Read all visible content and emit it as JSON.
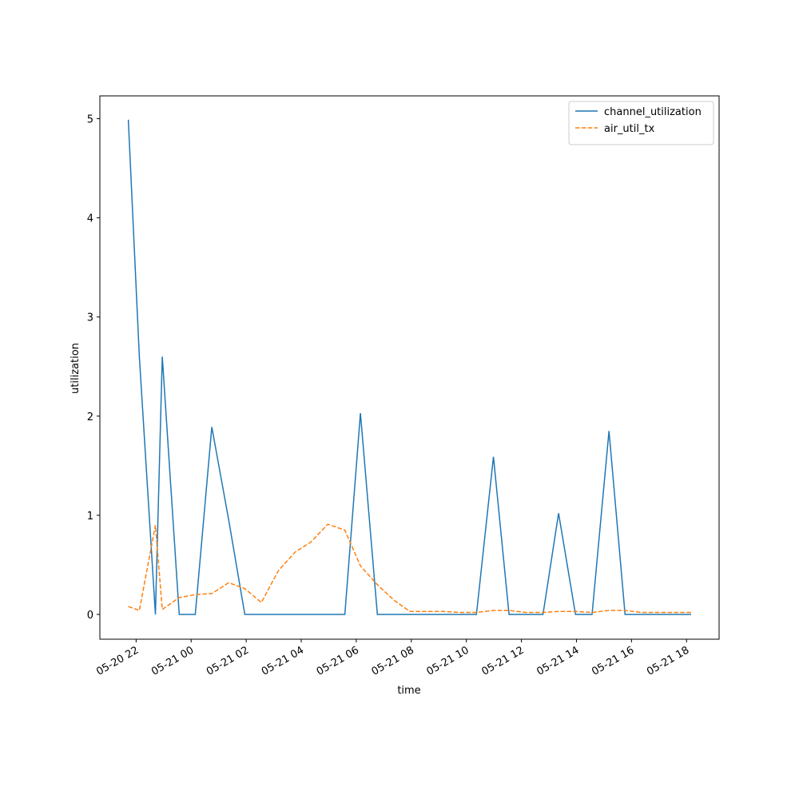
{
  "chart_data": {
    "type": "line",
    "xlabel": "time",
    "ylabel": "utilization",
    "x": [
      "05-20 21:43",
      "05-20 22:07",
      "05-20 22:42",
      "05-20 22:57",
      "05-20 23:34",
      "05-21 00:09",
      "05-21 00:45",
      "05-21 01:22",
      "05-21 01:57",
      "05-21 02:33",
      "05-21 03:10",
      "05-21 03:47",
      "05-21 04:21",
      "05-21 04:58",
      "05-21 05:35",
      "05-21 06:09",
      "05-21 06:46",
      "05-21 07:23",
      "05-21 07:57",
      "05-21 08:34",
      "05-21 09:10",
      "05-21 09:45",
      "05-21 10:22",
      "05-21 10:59",
      "05-21 11:33",
      "05-21 12:10",
      "05-21 12:47",
      "05-21 13:21",
      "05-21 13:58",
      "05-21 14:34",
      "05-21 15:11",
      "05-21 15:46",
      "05-21 16:22",
      "05-21 16:59",
      "05-21 17:33",
      "05-21 18:10"
    ],
    "series": [
      {
        "name": "channel_utilization",
        "color": "#1f77b4",
        "dashed": false,
        "values": [
          4.99,
          2.6,
          0,
          2.6,
          0,
          0,
          1.89,
          0.95,
          0,
          0,
          0,
          0,
          0,
          0,
          0,
          2.03,
          0,
          0,
          0,
          0,
          0,
          0,
          0,
          1.59,
          0,
          0,
          0,
          1.02,
          0,
          0,
          1.85,
          0,
          0,
          0,
          0,
          0
        ]
      },
      {
        "name": "air_util_tx",
        "color": "#ff7f0e",
        "dashed": true,
        "values": [
          0.08,
          0.04,
          0.9,
          0.05,
          0.17,
          0.2,
          0.21,
          0.32,
          0.26,
          0.12,
          0.44,
          0.63,
          0.73,
          0.91,
          0.85,
          0.49,
          0.3,
          0.14,
          0.03,
          0.03,
          0.03,
          0.02,
          0.02,
          0.04,
          0.04,
          0.02,
          0.02,
          0.03,
          0.03,
          0.02,
          0.04,
          0.04,
          0.02,
          0.02,
          0.02,
          0.02
        ]
      }
    ],
    "xlim": [
      "05-20 20:41",
      "05-21 19:11"
    ],
    "xticks": [
      "05-20 22",
      "05-21 00",
      "05-21 02",
      "05-21 04",
      "05-21 06",
      "05-21 08",
      "05-21 10",
      "05-21 12",
      "05-21 14",
      "05-21 16",
      "05-21 18"
    ],
    "ylim": [
      -0.25,
      5.23
    ],
    "yticks": [
      0,
      1,
      2,
      3,
      4,
      5
    ],
    "legend": "upper right"
  }
}
